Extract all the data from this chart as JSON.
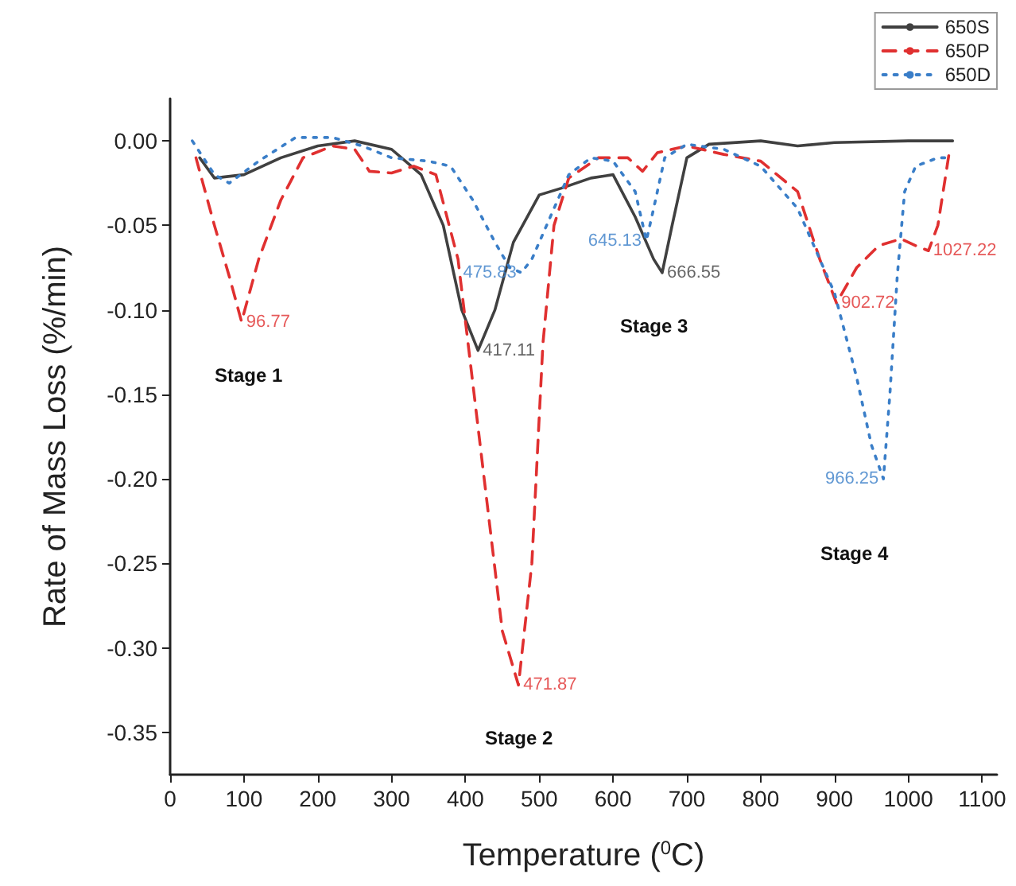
{
  "chart_data": {
    "type": "line",
    "xlabel": "Temperature ($^{0}$C)",
    "ylabel": "Rate of Mass Loss (%/min)",
    "xlim": [
      0,
      1120
    ],
    "ylim": [
      -0.375,
      0.025
    ],
    "xticks": [
      0,
      100,
      200,
      300,
      400,
      500,
      600,
      700,
      800,
      900,
      1000,
      1100
    ],
    "yticks": [
      {
        "value": 0,
        "label": "0.00"
      },
      {
        "value": -0.05,
        "label": "-0.05"
      },
      {
        "value": -0.1,
        "label": "-0.10"
      },
      {
        "value": -0.15,
        "label": "-0.15"
      },
      {
        "value": -0.2,
        "label": "-0.20"
      },
      {
        "value": -0.25,
        "label": "-0.25"
      },
      {
        "value": -0.3,
        "label": "-0.30"
      },
      {
        "value": -0.35,
        "label": "-0.35"
      }
    ],
    "grid": false,
    "legend": "top right",
    "marker": "none",
    "annotations": [
      "Stage 1",
      "Stage 2",
      "Stage 3",
      "Stage 4",
      {
        "text": "417.11",
        "x": 417.11,
        "y": -0.124
      },
      {
        "text": "666.55",
        "x": 666.55,
        "y": -0.078
      },
      {
        "text": "96.77",
        "x": 96.77,
        "y": -0.107
      },
      {
        "text": "471.87",
        "x": 471.87,
        "y": -0.322
      },
      {
        "text": "902.72",
        "x": 902.72,
        "y": -0.096
      },
      {
        "text": "1027.22",
        "x": 1027.22,
        "y": -0.065
      },
      {
        "text": "475.83",
        "x": 475.83,
        "y": -0.078
      },
      {
        "text": "645.13",
        "x": 645.13,
        "y": -0.059
      },
      {
        "text": "966.25",
        "x": 966.25,
        "y": -0.2
      }
    ],
    "series": [
      {
        "name": "650S",
        "color": "#404040",
        "line_style": "solid",
        "x": [
          40,
          60,
          100,
          150,
          200,
          250,
          300,
          340,
          370,
          395,
          417.11,
          440,
          465,
          500,
          530,
          570,
          600,
          630,
          655,
          666.55,
          680,
          700,
          730,
          800,
          850,
          900,
          1000,
          1060
        ],
        "values": [
          -0.01,
          -0.022,
          -0.02,
          -0.01,
          -0.003,
          0,
          -0.005,
          -0.02,
          -0.05,
          -0.1,
          -0.124,
          -0.1,
          -0.06,
          -0.032,
          -0.028,
          -0.022,
          -0.02,
          -0.045,
          -0.07,
          -0.078,
          -0.05,
          -0.01,
          -0.002,
          0,
          -0.003,
          -0.001,
          0,
          0
        ]
      },
      {
        "name": "650P",
        "color": "#e03030",
        "line_style": "dashed",
        "x": [
          35,
          60,
          80,
          96.77,
          120,
          150,
          180,
          220,
          250,
          270,
          300,
          330,
          360,
          390,
          420,
          450,
          471.87,
          490,
          505,
          520,
          540,
          580,
          620,
          640,
          660,
          700,
          750,
          800,
          850,
          880,
          902.72,
          930,
          960,
          990,
          1010,
          1027.22,
          1040,
          1055
        ],
        "values": [
          -0.01,
          -0.05,
          -0.08,
          -0.107,
          -0.07,
          -0.035,
          -0.01,
          -0.003,
          -0.005,
          -0.018,
          -0.019,
          -0.015,
          -0.02,
          -0.07,
          -0.18,
          -0.29,
          -0.322,
          -0.25,
          -0.12,
          -0.05,
          -0.022,
          -0.01,
          -0.01,
          -0.018,
          -0.007,
          -0.003,
          -0.008,
          -0.012,
          -0.03,
          -0.07,
          -0.096,
          -0.075,
          -0.062,
          -0.058,
          -0.062,
          -0.065,
          -0.05,
          -0.008
        ]
      },
      {
        "name": "650D",
        "color": "#3a7ec8",
        "line_style": "dotted",
        "x": [
          30,
          60,
          80,
          120,
          170,
          220,
          260,
          300,
          350,
          380,
          410,
          440,
          460,
          475.83,
          490,
          510,
          540,
          570,
          600,
          630,
          645.13,
          655,
          670,
          700,
          750,
          800,
          850,
          900,
          930,
          950,
          966.25,
          975,
          985,
          995,
          1010,
          1040,
          1055
        ],
        "values": [
          0,
          -0.02,
          -0.025,
          -0.012,
          0.002,
          0.002,
          -0.003,
          -0.01,
          -0.012,
          -0.015,
          -0.035,
          -0.06,
          -0.075,
          -0.078,
          -0.07,
          -0.05,
          -0.02,
          -0.01,
          -0.012,
          -0.03,
          -0.059,
          -0.04,
          -0.01,
          -0.002,
          -0.005,
          -0.015,
          -0.04,
          -0.09,
          -0.14,
          -0.18,
          -0.2,
          -0.15,
          -0.08,
          -0.03,
          -0.015,
          -0.01,
          -0.01
        ]
      }
    ]
  }
}
